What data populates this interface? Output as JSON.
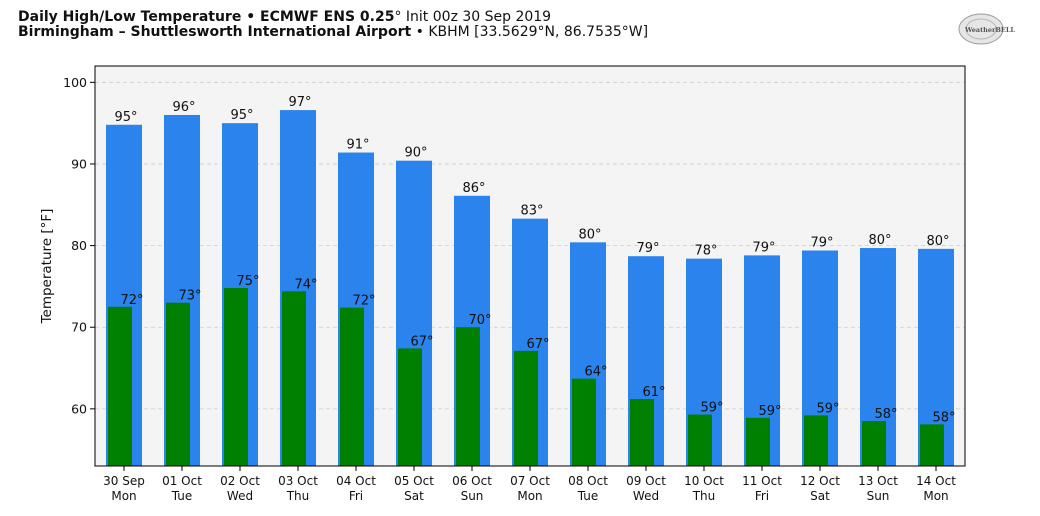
{
  "header": {
    "line1_bold": "Daily High/Low Temperature • ECMWF ENS 0.25",
    "line1_deg": "°",
    "line1_rest": " Init 00z 30 Sep 2019",
    "line2_bold": "Birmingham – Shuttlesworth International Airport",
    "line2_rest": " • KBHM [33.5629°N, 86.7535°W]"
  },
  "logo": {
    "text": "WeatherBELL",
    "icon": "weatherbell-logo"
  },
  "chart_data": {
    "type": "bar",
    "ylabel": "Temperature [°F]",
    "ylim": [
      53,
      102
    ],
    "yticks": [
      60,
      70,
      80,
      90,
      100
    ],
    "grid": true,
    "categories": [
      "30 Sep",
      "01 Oct",
      "02 Oct",
      "03 Oct",
      "04 Oct",
      "05 Oct",
      "06 Oct",
      "07 Oct",
      "08 Oct",
      "09 Oct",
      "10 Oct",
      "11 Oct",
      "12 Oct",
      "13 Oct",
      "14 Oct"
    ],
    "days": [
      "Mon",
      "Tue",
      "Wed",
      "Thu",
      "Fri",
      "Sat",
      "Sun",
      "Mon",
      "Tue",
      "Wed",
      "Thu",
      "Fri",
      "Sat",
      "Sun",
      "Mon"
    ],
    "series": [
      {
        "values": [
          94.8,
          96.0,
          95.0,
          96.6,
          91.4,
          90.4,
          86.1,
          83.3,
          80.4,
          78.7,
          78.4,
          78.8,
          79.4,
          79.7,
          79.6
        ],
        "labels": [
          "95°",
          "96°",
          "95°",
          "97°",
          "91°",
          "90°",
          "86°",
          "83°",
          "80°",
          "79°",
          "78°",
          "79°",
          "79°",
          "80°",
          "80°"
        ],
        "color": "#2b83ee"
      },
      {
        "values": [
          72.5,
          73.0,
          74.8,
          74.4,
          72.4,
          67.4,
          70.0,
          67.1,
          63.7,
          61.2,
          59.3,
          58.9,
          59.2,
          58.5,
          58.1
        ],
        "labels": [
          "72°",
          "73°",
          "75°",
          "74°",
          "72°",
          "67°",
          "70°",
          "67°",
          "64°",
          "61°",
          "59°",
          "59°",
          "59°",
          "58°",
          "58°"
        ],
        "color": "#008000"
      }
    ],
    "plot_background": "#f4f4f4",
    "grid_color": "#cccccc"
  }
}
